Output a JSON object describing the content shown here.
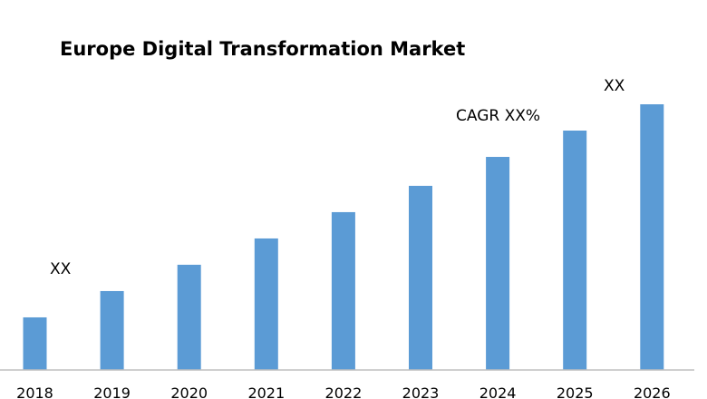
{
  "chart_data": {
    "type": "bar",
    "title": "Europe Digital Transformation Market",
    "categories": [
      "2018",
      "2019",
      "2020",
      "2021",
      "2022",
      "2023",
      "2024",
      "2025",
      "2026"
    ],
    "values": [
      1.0,
      1.5,
      2.0,
      2.5,
      3.0,
      3.5,
      4.05,
      4.55,
      5.05
    ],
    "xlabel": "",
    "ylabel": "",
    "ylim": [
      0,
      5.05
    ],
    "grid": false,
    "bar_color": "#5b9bd5",
    "annotations": {
      "start_label": "XX",
      "end_label": "XX",
      "cagr_label": "CAGR XX%"
    }
  }
}
